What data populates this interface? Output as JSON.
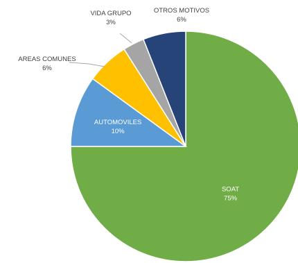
{
  "chart_data": {
    "type": "pie",
    "title": "",
    "slices": [
      {
        "label": "SOAT",
        "value_label": "75%",
        "value": 75,
        "color": "#70ad47"
      },
      {
        "label": "AUTOMOVILES",
        "value_label": "10%",
        "value": 10,
        "color": "#5b9bd5"
      },
      {
        "label": "AREAS COMUNES",
        "value_label": "6%",
        "value": 6,
        "color": "#ffc000"
      },
      {
        "label": "VIDA GRUPO",
        "value_label": "3%",
        "value": 3,
        "color": "#a5a5a5"
      },
      {
        "label": "OTROS MOTIVOS",
        "value_label": "6%",
        "value": 6,
        "color": "#264478"
      }
    ],
    "start_angle": "12 o'clock",
    "direction": "clockwise",
    "legend": "none"
  }
}
